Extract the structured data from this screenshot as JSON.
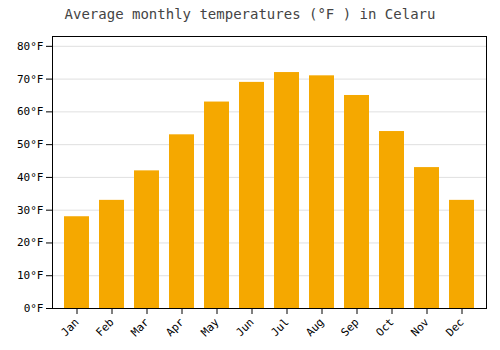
{
  "chart_data": {
    "type": "bar",
    "title": "Average monthly temperatures (°F ) in Celaru",
    "categories": [
      "Jan",
      "Feb",
      "Mar",
      "Apr",
      "May",
      "Jun",
      "Jul",
      "Aug",
      "Sep",
      "Oct",
      "Nov",
      "Dec"
    ],
    "values": [
      28,
      33,
      42,
      53,
      63,
      69,
      72,
      71,
      65,
      54,
      43,
      33
    ],
    "color": "#F5A800",
    "ylim": [
      0,
      83
    ],
    "yticks": [
      {
        "value": 0,
        "label": "0°F"
      },
      {
        "value": 10,
        "label": "10°F"
      },
      {
        "value": 20,
        "label": "20°F"
      },
      {
        "value": 30,
        "label": "30°F"
      },
      {
        "value": 40,
        "label": "40°F"
      },
      {
        "value": 50,
        "label": "50°F"
      },
      {
        "value": 60,
        "label": "60°F"
      },
      {
        "value": 70,
        "label": "70°F"
      },
      {
        "value": 80,
        "label": "80°F"
      }
    ],
    "grid": true
  }
}
